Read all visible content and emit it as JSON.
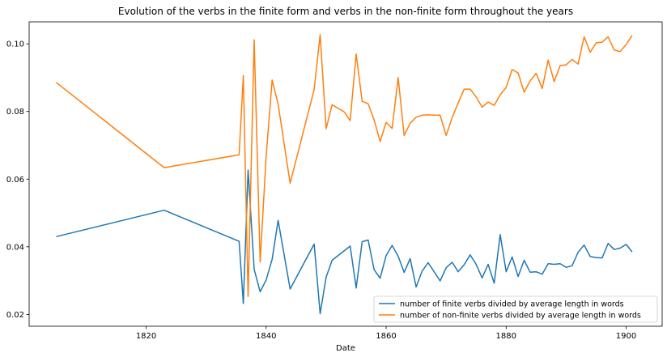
{
  "chart_data": {
    "type": "line",
    "title": "Evolution of the verbs in the finite form and verbs in the non-finite form throughout the years",
    "xlabel": "Date",
    "ylabel": "",
    "xlim": [
      1800.5,
      1906
    ],
    "ylim": [
      0.0165,
      0.1065
    ],
    "x_ticks": [
      1820,
      1840,
      1860,
      1880,
      1900
    ],
    "y_ticks": [
      0.02,
      0.04,
      0.06,
      0.08,
      0.1
    ],
    "x_tick_labels": [
      "1820",
      "1840",
      "1860",
      "1880",
      "1900"
    ],
    "y_tick_labels": [
      "0.02",
      "0.04",
      "0.06",
      "0.08",
      "0.10"
    ],
    "grid": false,
    "legend_position": "bottom-right",
    "series": [
      {
        "name": "number of finite verbs divided by average length in words",
        "color": "#1f77b4",
        "points": [
          [
            1805,
            0.043
          ],
          [
            1823,
            0.0508
          ],
          [
            1835.5,
            0.0416
          ],
          [
            1836.2,
            0.0232
          ],
          [
            1837,
            0.0627
          ],
          [
            1838,
            0.0333
          ],
          [
            1839,
            0.0267
          ],
          [
            1840,
            0.0302
          ],
          [
            1841,
            0.0363
          ],
          [
            1842,
            0.0478
          ],
          [
            1844,
            0.0275
          ],
          [
            1848,
            0.0408
          ],
          [
            1849,
            0.0202
          ],
          [
            1850,
            0.031
          ],
          [
            1851,
            0.036
          ],
          [
            1854,
            0.0402
          ],
          [
            1855,
            0.0278
          ],
          [
            1856,
            0.0415
          ],
          [
            1857,
            0.042
          ],
          [
            1858,
            0.0332
          ],
          [
            1859,
            0.0307
          ],
          [
            1860,
            0.0374
          ],
          [
            1861,
            0.0404
          ],
          [
            1862,
            0.0372
          ],
          [
            1863,
            0.0324
          ],
          [
            1864,
            0.0365
          ],
          [
            1865,
            0.0281
          ],
          [
            1866,
            0.0328
          ],
          [
            1867,
            0.0353
          ],
          [
            1868,
            0.0326
          ],
          [
            1869,
            0.0299
          ],
          [
            1870,
            0.0338
          ],
          [
            1871,
            0.0354
          ],
          [
            1872,
            0.0326
          ],
          [
            1873,
            0.0347
          ],
          [
            1874,
            0.0376
          ],
          [
            1875,
            0.0348
          ],
          [
            1876,
            0.0308
          ],
          [
            1877,
            0.0348
          ],
          [
            1878,
            0.0292
          ],
          [
            1879,
            0.0436
          ],
          [
            1880,
            0.0326
          ],
          [
            1881,
            0.037
          ],
          [
            1882,
            0.0312
          ],
          [
            1883,
            0.036
          ],
          [
            1884,
            0.0325
          ],
          [
            1885,
            0.0326
          ],
          [
            1886,
            0.0319
          ],
          [
            1887,
            0.035
          ],
          [
            1888,
            0.0348
          ],
          [
            1889,
            0.035
          ],
          [
            1890,
            0.0339
          ],
          [
            1891,
            0.0344
          ],
          [
            1892,
            0.0384
          ],
          [
            1893,
            0.0405
          ],
          [
            1894,
            0.0371
          ],
          [
            1895,
            0.0368
          ],
          [
            1896,
            0.0367
          ],
          [
            1897,
            0.041
          ],
          [
            1898,
            0.0392
          ],
          [
            1899,
            0.0396
          ],
          [
            1900,
            0.0407
          ],
          [
            1901,
            0.0385
          ]
        ]
      },
      {
        "name": "number of non-finite verbs divided by average length in words",
        "color": "#ff7f0e",
        "points": [
          [
            1805,
            0.0886
          ],
          [
            1823,
            0.0634
          ],
          [
            1835.5,
            0.0672
          ],
          [
            1836.2,
            0.0906
          ],
          [
            1837,
            0.0253
          ],
          [
            1838,
            0.1012
          ],
          [
            1839,
            0.0355
          ],
          [
            1840,
            0.0668
          ],
          [
            1841,
            0.0893
          ],
          [
            1842,
            0.0822
          ],
          [
            1844,
            0.0588
          ],
          [
            1848,
            0.0865
          ],
          [
            1849,
            0.1027
          ],
          [
            1850,
            0.0749
          ],
          [
            1851,
            0.082
          ],
          [
            1853,
            0.0799
          ],
          [
            1854,
            0.0773
          ],
          [
            1855,
            0.097
          ],
          [
            1856,
            0.083
          ],
          [
            1857,
            0.0823
          ],
          [
            1858,
            0.0775
          ],
          [
            1859,
            0.0711
          ],
          [
            1860,
            0.0768
          ],
          [
            1861,
            0.075
          ],
          [
            1862,
            0.09
          ],
          [
            1863,
            0.0729
          ],
          [
            1864,
            0.0765
          ],
          [
            1865,
            0.0783
          ],
          [
            1866,
            0.0789
          ],
          [
            1867,
            0.079
          ],
          [
            1868,
            0.0789
          ],
          [
            1869,
            0.0789
          ],
          [
            1870,
            0.0729
          ],
          [
            1871,
            0.0782
          ],
          [
            1872,
            0.0825
          ],
          [
            1873,
            0.0866
          ],
          [
            1874,
            0.0866
          ],
          [
            1875,
            0.0843
          ],
          [
            1876,
            0.0813
          ],
          [
            1877,
            0.0828
          ],
          [
            1878,
            0.0818
          ],
          [
            1879,
            0.0849
          ],
          [
            1880,
            0.0871
          ],
          [
            1881,
            0.0924
          ],
          [
            1882,
            0.0914
          ],
          [
            1883,
            0.0857
          ],
          [
            1884,
            0.089
          ],
          [
            1885,
            0.0913
          ],
          [
            1886,
            0.0868
          ],
          [
            1887,
            0.0952
          ],
          [
            1888,
            0.0888
          ],
          [
            1889,
            0.0936
          ],
          [
            1890,
            0.0938
          ],
          [
            1891,
            0.0954
          ],
          [
            1892,
            0.094
          ],
          [
            1893,
            0.1021
          ],
          [
            1894,
            0.0975
          ],
          [
            1895,
            0.1003
          ],
          [
            1896,
            0.1005
          ],
          [
            1897,
            0.1021
          ],
          [
            1898,
            0.0982
          ],
          [
            1899,
            0.0977
          ],
          [
            1900,
            0.0998
          ],
          [
            1901,
            0.1025
          ]
        ]
      }
    ]
  }
}
